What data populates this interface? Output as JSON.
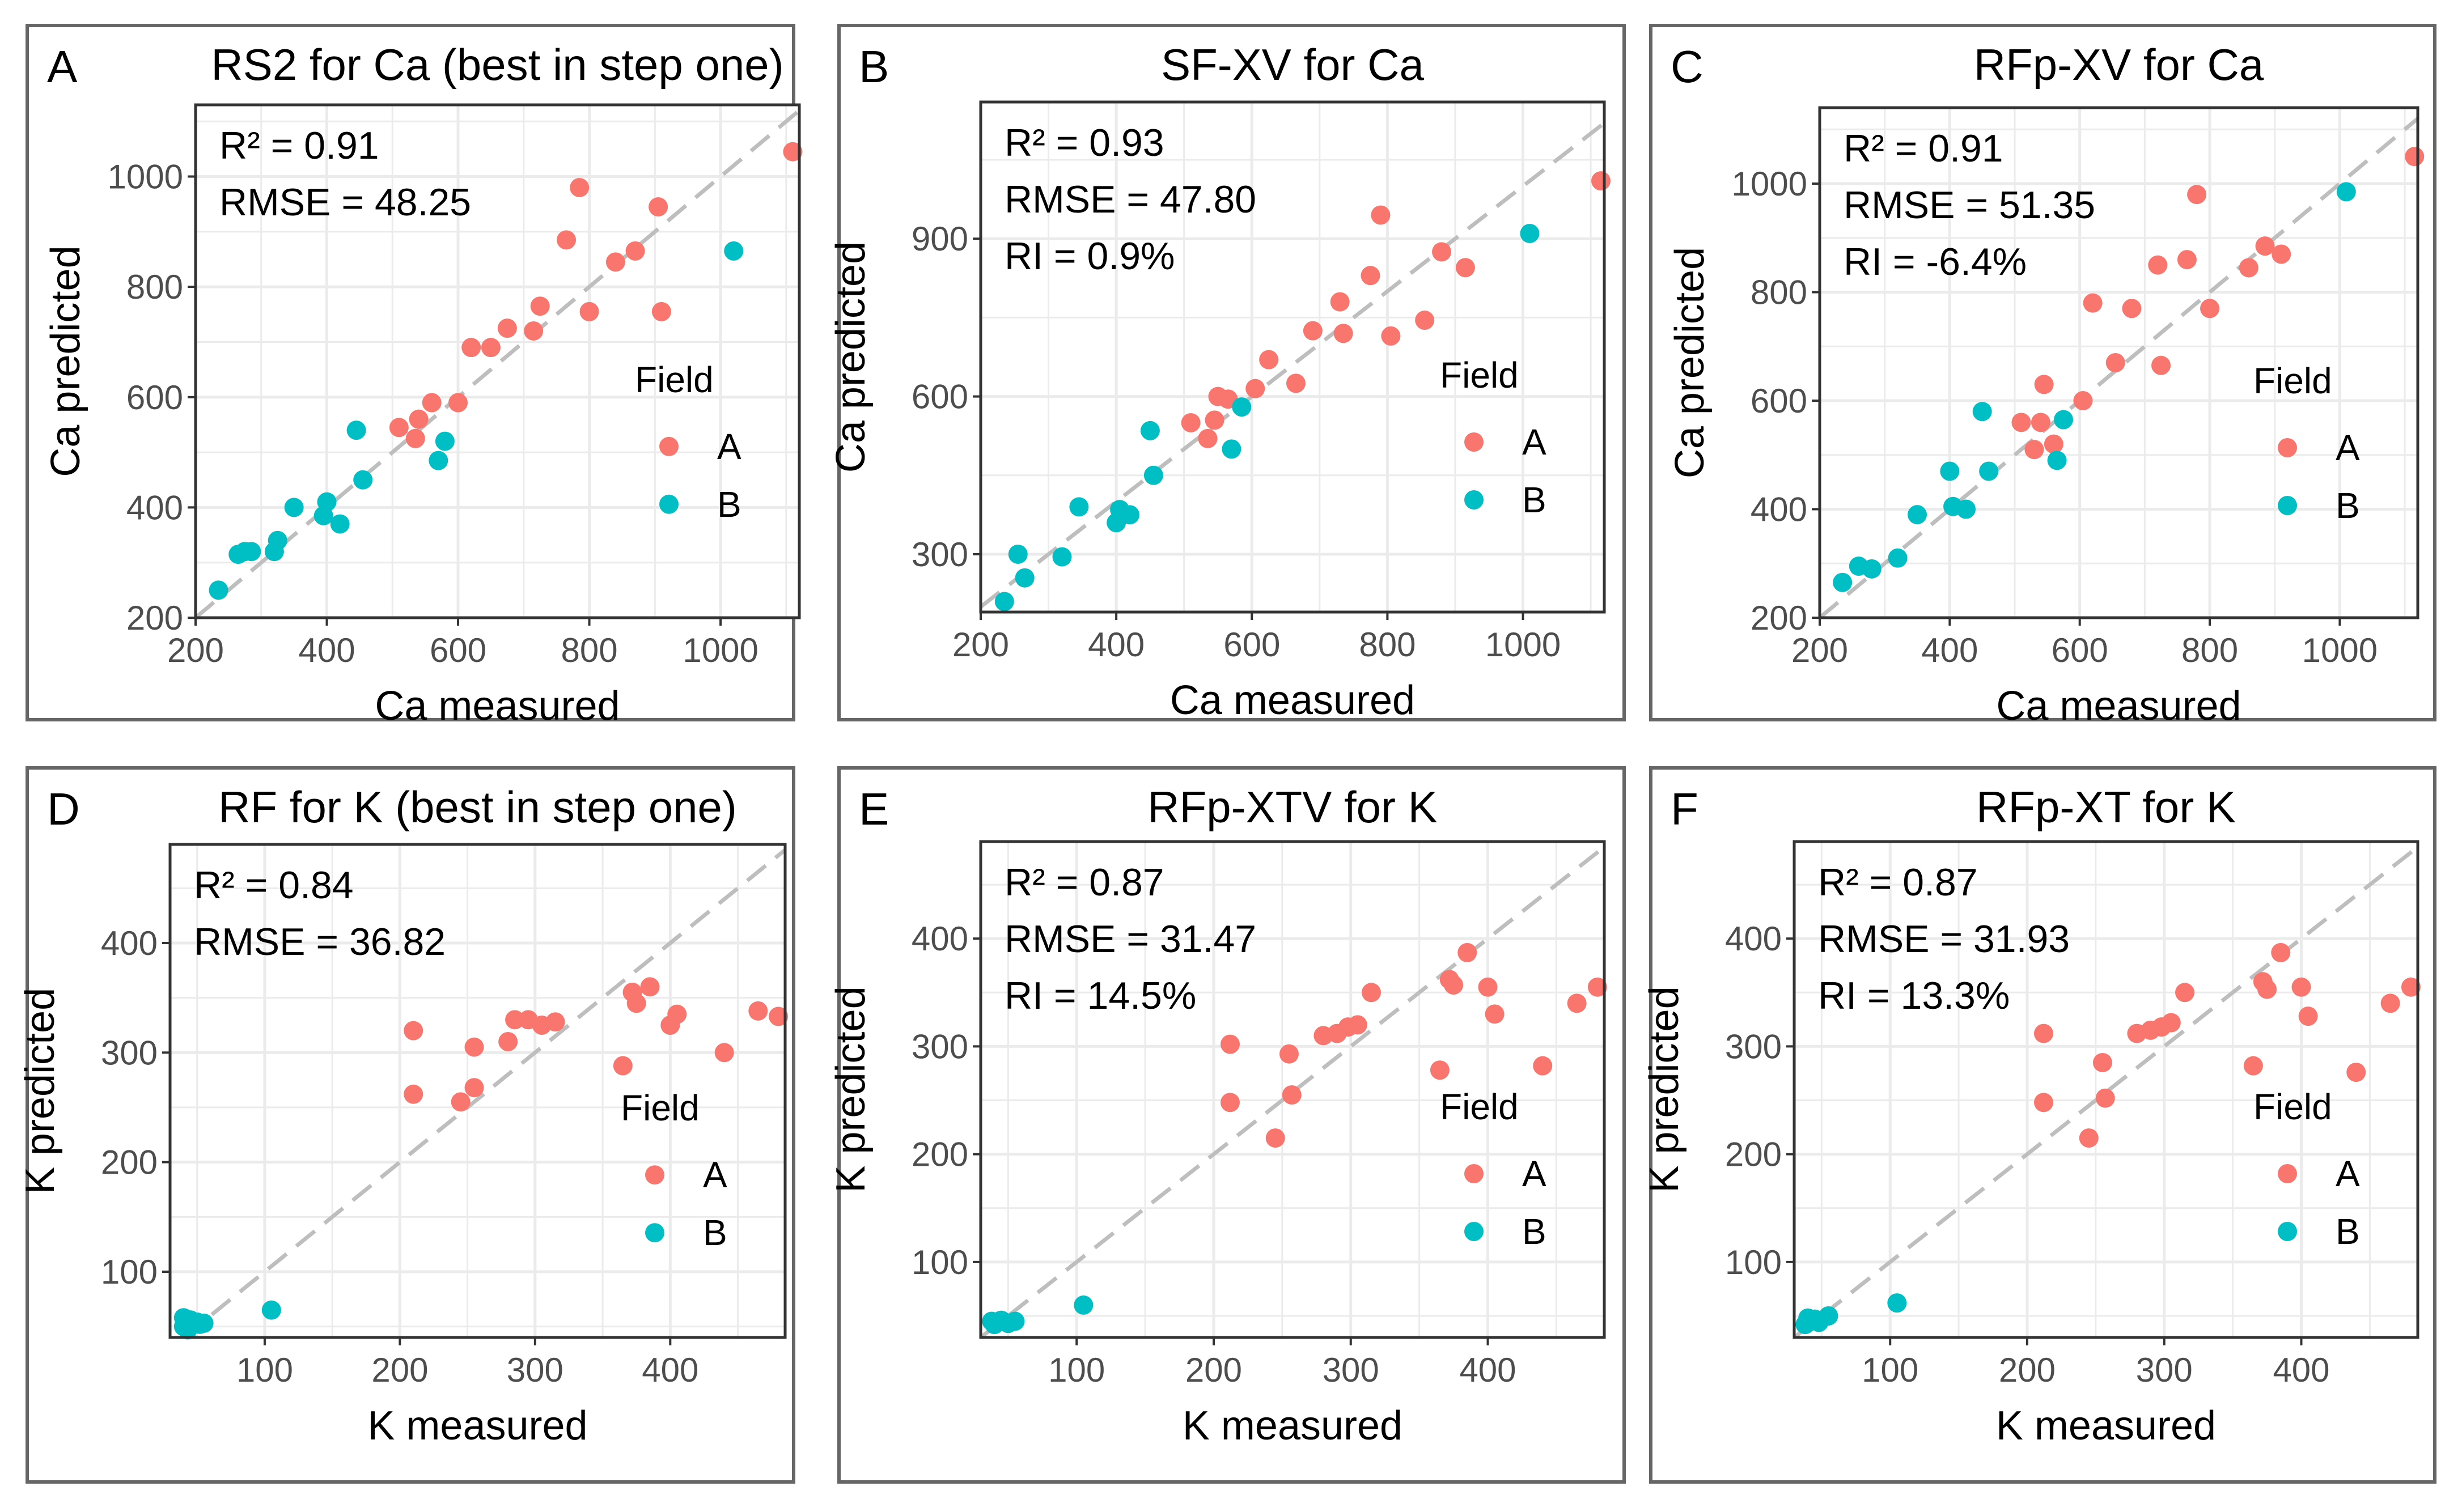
{
  "colors": {
    "A": "#F8766D",
    "B": "#00BFC4",
    "panel_border": "#666666",
    "plot_border": "#333333",
    "grid": "#EBEBEB",
    "ref_line": "#BEBEBE",
    "text": "#000000",
    "tick_text": "#4D4D4D"
  },
  "chart_data": [
    {
      "type": "scatter",
      "panel_letter": "A",
      "title": "RS2 for Ca (best in step one)",
      "xlabel": "Ca measured",
      "ylabel": "Ca predicted",
      "xlim": [
        200,
        1120
      ],
      "ylim": [
        200,
        1130
      ],
      "xticks": [
        200,
        400,
        600,
        800,
        1000
      ],
      "yticks": [
        200,
        400,
        600,
        800,
        1000
      ],
      "stats": [
        "R² = 0.91",
        "RMSE = 48.25"
      ],
      "legend": {
        "title": "Field",
        "entries": [
          "A",
          "B"
        ],
        "position": "right"
      },
      "series": [
        {
          "name": "A",
          "points": [
            [
              510,
              545
            ],
            [
              535,
              525
            ],
            [
              540,
              560
            ],
            [
              560,
              590
            ],
            [
              600,
              590
            ],
            [
              620,
              690
            ],
            [
              650,
              690
            ],
            [
              675,
              725
            ],
            [
              715,
              720
            ],
            [
              725,
              765
            ],
            [
              765,
              885
            ],
            [
              785,
              980
            ],
            [
              800,
              755
            ],
            [
              840,
              845
            ],
            [
              870,
              865
            ],
            [
              905,
              945
            ],
            [
              910,
              755
            ],
            [
              1110,
              1045
            ]
          ]
        },
        {
          "name": "B",
          "points": [
            [
              235,
              250
            ],
            [
              265,
              315
            ],
            [
              275,
              320
            ],
            [
              285,
              320
            ],
            [
              320,
              320
            ],
            [
              325,
              340
            ],
            [
              350,
              400
            ],
            [
              395,
              385
            ],
            [
              400,
              410
            ],
            [
              420,
              370
            ],
            [
              445,
              540
            ],
            [
              455,
              450
            ],
            [
              570,
              485
            ],
            [
              580,
              520
            ],
            [
              1020,
              865
            ]
          ]
        }
      ]
    },
    {
      "type": "scatter",
      "panel_letter": "B",
      "title": "SF-XV for Ca",
      "xlabel": "Ca measured",
      "ylabel": "Ca predicted",
      "xlim": [
        200,
        1120
      ],
      "ylim": [
        190,
        1160
      ],
      "xticks": [
        200,
        400,
        600,
        800,
        1000
      ],
      "yticks": [
        300,
        600,
        900
      ],
      "stats": [
        "R² = 0.93",
        "RMSE = 47.80",
        "RI = 0.9%"
      ],
      "legend": {
        "title": "Field",
        "entries": [
          "A",
          "B"
        ],
        "position": "right"
      },
      "series": [
        {
          "name": "A",
          "points": [
            [
              510,
              550
            ],
            [
              535,
              520
            ],
            [
              545,
              555
            ],
            [
              550,
              600
            ],
            [
              565,
              595
            ],
            [
              605,
              615
            ],
            [
              625,
              670
            ],
            [
              665,
              625
            ],
            [
              690,
              725
            ],
            [
              730,
              780
            ],
            [
              735,
              720
            ],
            [
              775,
              830
            ],
            [
              790,
              945
            ],
            [
              805,
              715
            ],
            [
              855,
              745
            ],
            [
              880,
              875
            ],
            [
              915,
              845
            ],
            [
              1115,
              1010
            ]
          ]
        },
        {
          "name": "B",
          "points": [
            [
              235,
              210
            ],
            [
              255,
              300
            ],
            [
              265,
              255
            ],
            [
              320,
              295
            ],
            [
              345,
              390
            ],
            [
              400,
              360
            ],
            [
              405,
              385
            ],
            [
              420,
              375
            ],
            [
              450,
              535
            ],
            [
              455,
              450
            ],
            [
              570,
              500
            ],
            [
              585,
              580
            ],
            [
              1010,
              910
            ]
          ]
        }
      ]
    },
    {
      "type": "scatter",
      "panel_letter": "C",
      "title": "RFp-XV for Ca",
      "xlabel": "Ca measured",
      "ylabel": "Ca predicted",
      "xlim": [
        200,
        1120
      ],
      "ylim": [
        200,
        1140
      ],
      "xticks": [
        200,
        400,
        600,
        800,
        1000
      ],
      "yticks": [
        200,
        400,
        600,
        800,
        1000
      ],
      "stats": [
        "R² = 0.91",
        "RMSE = 51.35",
        "RI = -6.4%"
      ],
      "legend": {
        "title": "Field",
        "entries": [
          "A",
          "B"
        ],
        "position": "right"
      },
      "series": [
        {
          "name": "A",
          "points": [
            [
              510,
              560
            ],
            [
              530,
              510
            ],
            [
              540,
              560
            ],
            [
              545,
              630
            ],
            [
              560,
              520
            ],
            [
              605,
              600
            ],
            [
              620,
              780
            ],
            [
              655,
              670
            ],
            [
              680,
              770
            ],
            [
              720,
              850
            ],
            [
              725,
              665
            ],
            [
              765,
              860
            ],
            [
              780,
              980
            ],
            [
              800,
              770
            ],
            [
              860,
              845
            ],
            [
              885,
              885
            ],
            [
              910,
              870
            ],
            [
              1115,
              1050
            ]
          ]
        },
        {
          "name": "B",
          "points": [
            [
              235,
              265
            ],
            [
              260,
              295
            ],
            [
              280,
              290
            ],
            [
              320,
              310
            ],
            [
              350,
              390
            ],
            [
              400,
              470
            ],
            [
              405,
              405
            ],
            [
              425,
              400
            ],
            [
              450,
              580
            ],
            [
              460,
              470
            ],
            [
              565,
              490
            ],
            [
              575,
              565
            ],
            [
              1010,
              985
            ]
          ]
        }
      ]
    },
    {
      "type": "scatter",
      "panel_letter": "D",
      "title": "RF for K (best in step one)",
      "xlabel": "K measured",
      "ylabel": "K predicted",
      "xlim": [
        30,
        485
      ],
      "ylim": [
        40,
        490
      ],
      "xticks": [
        100,
        200,
        300,
        400
      ],
      "yticks": [
        100,
        200,
        300,
        400
      ],
      "stats": [
        "R² = 0.84",
        "RMSE = 36.82"
      ],
      "legend": {
        "title": "Field",
        "entries": [
          "A",
          "B"
        ],
        "position": "right"
      },
      "series": [
        {
          "name": "A",
          "points": [
            [
              210,
              320
            ],
            [
              210,
              262
            ],
            [
              245,
              255
            ],
            [
              255,
              305
            ],
            [
              255,
              268
            ],
            [
              280,
              310
            ],
            [
              285,
              330
            ],
            [
              295,
              330
            ],
            [
              305,
              325
            ],
            [
              315,
              328
            ],
            [
              365,
              288
            ],
            [
              372,
              355
            ],
            [
              375,
              345
            ],
            [
              385,
              360
            ],
            [
              400,
              325
            ],
            [
              405,
              335
            ],
            [
              440,
              300
            ],
            [
              465,
              338
            ],
            [
              480,
              333
            ]
          ]
        },
        {
          "name": "B",
          "points": [
            [
              40,
              50
            ],
            [
              40,
              58
            ],
            [
              42,
              54
            ],
            [
              43,
              47
            ],
            [
              45,
              56
            ],
            [
              50,
              54
            ],
            [
              52,
              52
            ],
            [
              55,
              53
            ],
            [
              105,
              65
            ]
          ]
        }
      ]
    },
    {
      "type": "scatter",
      "panel_letter": "E",
      "title": "RFp-XTV for K",
      "xlabel": "K measured",
      "ylabel": "K predicted",
      "xlim": [
        30,
        485
      ],
      "ylim": [
        30,
        490
      ],
      "xticks": [
        100,
        200,
        300,
        400
      ],
      "yticks": [
        100,
        200,
        300,
        400
      ],
      "stats": [
        "R² = 0.87",
        "RMSE = 31.47",
        "RI = 14.5%"
      ],
      "legend": {
        "title": "Field",
        "entries": [
          "A",
          "B"
        ],
        "position": "right"
      },
      "series": [
        {
          "name": "A",
          "points": [
            [
              212,
              302
            ],
            [
              212,
              248
            ],
            [
              245,
              215
            ],
            [
              255,
              293
            ],
            [
              257,
              255
            ],
            [
              280,
              310
            ],
            [
              290,
              312
            ],
            [
              298,
              318
            ],
            [
              305,
              320
            ],
            [
              315,
              350
            ],
            [
              365,
              278
            ],
            [
              372,
              362
            ],
            [
              375,
              357
            ],
            [
              385,
              387
            ],
            [
              400,
              355
            ],
            [
              405,
              330
            ],
            [
              440,
              282
            ],
            [
              465,
              340
            ],
            [
              480,
              355
            ]
          ]
        },
        {
          "name": "B",
          "points": [
            [
              38,
              45
            ],
            [
              40,
              42
            ],
            [
              42,
              44
            ],
            [
              45,
              46
            ],
            [
              50,
              43
            ],
            [
              55,
              45
            ],
            [
              105,
              60
            ]
          ]
        }
      ]
    },
    {
      "type": "scatter",
      "panel_letter": "F",
      "title": "RFp-XT for K",
      "xlabel": "K measured",
      "ylabel": "K predicted",
      "xlim": [
        30,
        485
      ],
      "ylim": [
        30,
        490
      ],
      "xticks": [
        100,
        200,
        300,
        400
      ],
      "yticks": [
        100,
        200,
        300,
        400
      ],
      "stats": [
        "R² = 0.87",
        "RMSE = 31.93",
        "RI = 13.3%"
      ],
      "legend": {
        "title": "Field",
        "entries": [
          "A",
          "B"
        ],
        "position": "right"
      },
      "series": [
        {
          "name": "A",
          "points": [
            [
              212,
              312
            ],
            [
              212,
              248
            ],
            [
              245,
              215
            ],
            [
              255,
              285
            ],
            [
              257,
              252
            ],
            [
              280,
              312
            ],
            [
              290,
              315
            ],
            [
              298,
              318
            ],
            [
              305,
              322
            ],
            [
              315,
              350
            ],
            [
              365,
              282
            ],
            [
              372,
              360
            ],
            [
              375,
              353
            ],
            [
              385,
              387
            ],
            [
              400,
              355
            ],
            [
              405,
              328
            ],
            [
              440,
              276
            ],
            [
              465,
              340
            ],
            [
              480,
              355
            ]
          ]
        },
        {
          "name": "B",
          "points": [
            [
              38,
              42
            ],
            [
              40,
              48
            ],
            [
              42,
              45
            ],
            [
              45,
              47
            ],
            [
              48,
              44
            ],
            [
              55,
              50
            ],
            [
              105,
              62
            ]
          ]
        }
      ]
    }
  ]
}
